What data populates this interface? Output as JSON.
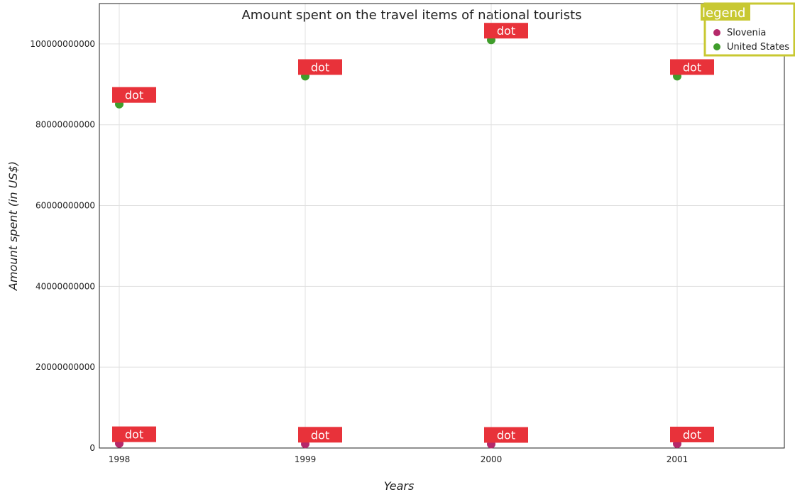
{
  "chart_data": {
    "type": "scatter",
    "title": "Amount spent on the travel items of national tourists",
    "xlabel": "Years",
    "ylabel": "Amount spent (in US$)",
    "categories": [
      "1998",
      "1999",
      "2000",
      "2001"
    ],
    "ylim": [
      0,
      110000000000
    ],
    "yticks": [
      0,
      20000000000,
      40000000000,
      60000000000,
      80000000000,
      100000000000
    ],
    "ytick_labels": [
      "0",
      "20000000000",
      "40000000000",
      "60000000000",
      "80000000000",
      "100000000000"
    ],
    "grid": true,
    "legend": {
      "title": "legend",
      "position": "top-right",
      "entries": [
        "Slovenia",
        "United States"
      ]
    },
    "point_annotation": "dot",
    "series": [
      {
        "name": "Slovenia",
        "color": "#b5296a",
        "values": [
          1120000000,
          1000000000,
          957000000,
          1060000000
        ]
      },
      {
        "name": "United States",
        "color": "#3f9d2b",
        "values": [
          85100000000,
          92000000000,
          101000000000,
          92000000000
        ]
      }
    ],
    "colors": {
      "badge": "#e8323a",
      "legend_border": "#c8c832",
      "legend_title_bg": "#c8c832"
    }
  }
}
